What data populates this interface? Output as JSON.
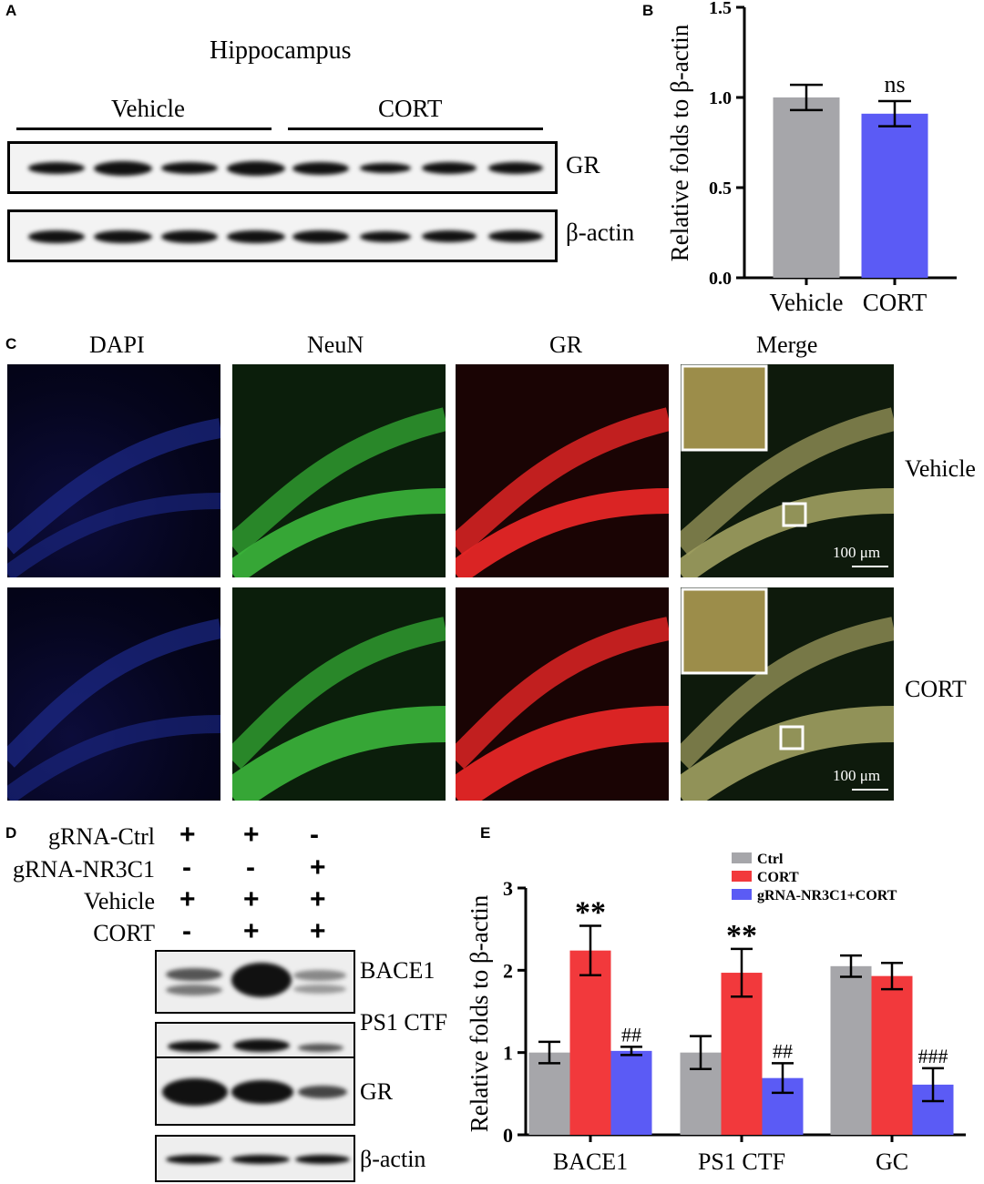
{
  "panels": {
    "a": "A",
    "b": "B",
    "c": "C",
    "d": "D",
    "e": "E"
  },
  "panel_a": {
    "title": "Hippocampus",
    "group_labels": [
      "Vehicle",
      "CORT"
    ],
    "row_labels": [
      "GR",
      "β-actin"
    ]
  },
  "panel_c": {
    "column_labels": [
      "DAPI",
      "NeuN",
      "GR",
      "Merge"
    ],
    "row_labels": [
      "Vehicle",
      "CORT"
    ],
    "scale_bar": "100 μm"
  },
  "panel_d": {
    "conditions": [
      {
        "label": "gRNA-Ctrl",
        "signs": [
          "+",
          "+",
          "-"
        ]
      },
      {
        "label": "gRNA-NR3C1",
        "signs": [
          "-",
          "-",
          "+"
        ]
      },
      {
        "label": "Vehicle",
        "signs": [
          "+",
          "+",
          "+"
        ]
      },
      {
        "label": "CORT",
        "signs": [
          "-",
          "+",
          "+"
        ]
      }
    ],
    "row_labels": [
      "BACE1",
      "PS1 CTF",
      "GR",
      "β-actin"
    ]
  },
  "colors": {
    "gray": "#a6a6aa",
    "red": "#f2393c",
    "blue": "#5b5bf5"
  },
  "chart_data": [
    {
      "type": "bar",
      "panel": "B",
      "categories": [
        "Vehicle",
        "CORT"
      ],
      "values": [
        1.0,
        0.91
      ],
      "errors": [
        0.07,
        0.07
      ],
      "colors": [
        "#a6a6aa",
        "#5b5bf5"
      ],
      "annotations": [
        "",
        "ns"
      ],
      "ylabel": "Relative folds to β-actin",
      "ylim": [
        0,
        1.5
      ],
      "yticks": [
        "0.0",
        "0.5",
        "1.0",
        "1.5"
      ]
    },
    {
      "type": "bar",
      "panel": "E",
      "categories": [
        "BACE1",
        "PS1 CTF",
        "GC"
      ],
      "ylabel": "Relative folds to β-actin",
      "ylim": [
        0,
        3
      ],
      "yticks": [
        "0",
        "1",
        "2",
        "3"
      ],
      "legend": "top-right",
      "series": [
        {
          "name": "Ctrl",
          "color": "#a6a6aa",
          "values": [
            1.0,
            1.0,
            2.05
          ],
          "errors": [
            0.13,
            0.2,
            0.13
          ],
          "annotations": [
            "",
            "",
            ""
          ]
        },
        {
          "name": "CORT",
          "color": "#f2393c",
          "values": [
            2.24,
            1.97,
            1.93
          ],
          "errors": [
            0.3,
            0.29,
            0.16
          ],
          "annotations": [
            "**",
            "**",
            ""
          ]
        },
        {
          "name": "gRNA-NR3C1+CORT",
          "color": "#5b5bf5",
          "values": [
            1.02,
            0.69,
            0.61
          ],
          "errors": [
            0.05,
            0.18,
            0.2
          ],
          "annotations": [
            "##",
            "##",
            "###"
          ]
        }
      ]
    }
  ]
}
